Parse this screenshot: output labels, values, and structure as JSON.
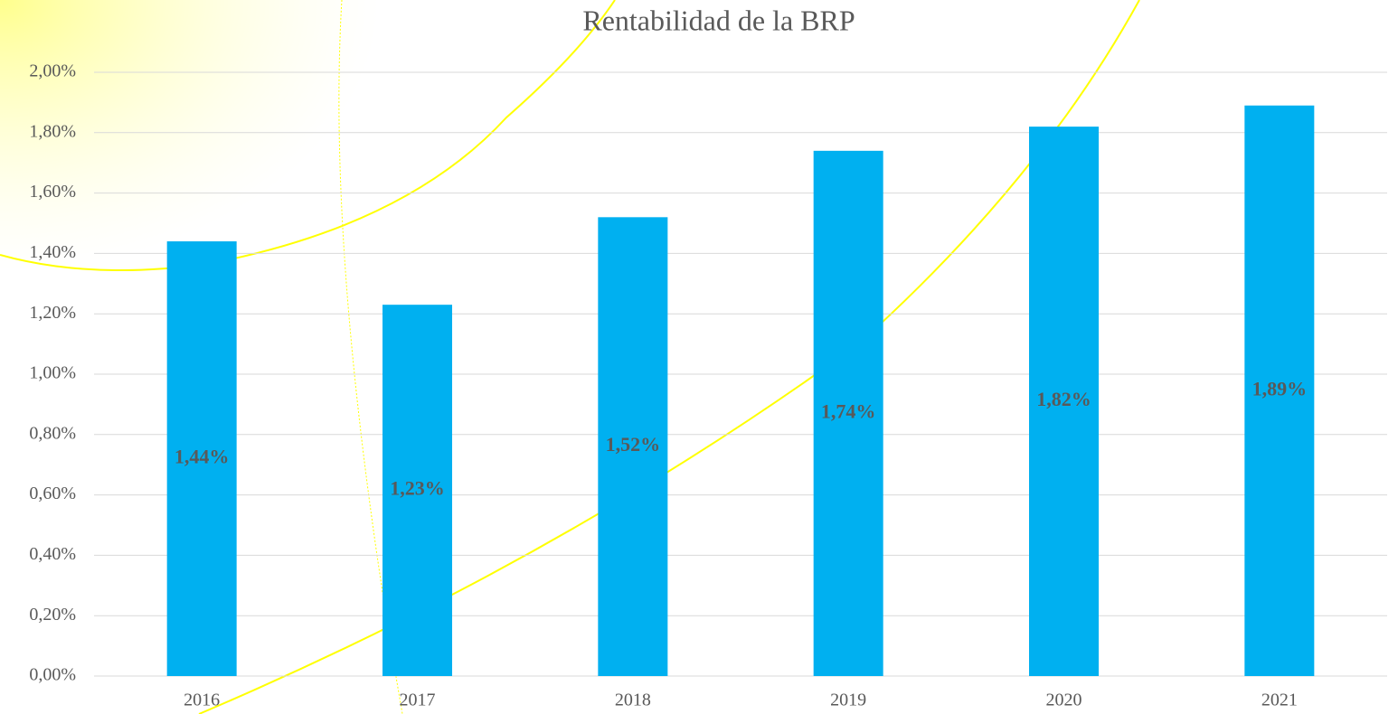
{
  "chart_data": {
    "type": "bar",
    "title": "Rentabilidad de la BRP",
    "categories": [
      "2016",
      "2017",
      "2018",
      "2019",
      "2020",
      "2021"
    ],
    "values": [
      1.44,
      1.23,
      1.52,
      1.74,
      1.82,
      1.89
    ],
    "value_labels": [
      "1,44%",
      "1,23%",
      "1,52%",
      "1,74%",
      "1,82%",
      "1,89%"
    ],
    "color": "#00b0f0",
    "ylim": [
      0,
      2
    ],
    "yticks": [
      {
        "value": 0,
        "label": "0,00%"
      },
      {
        "value": 0.2,
        "label": "0,20%"
      },
      {
        "value": 0.4,
        "label": "0,40%"
      },
      {
        "value": 0.6,
        "label": "0,60%"
      },
      {
        "value": 0.8,
        "label": "0,80%"
      },
      {
        "value": 1,
        "label": "1,00%"
      },
      {
        "value": 1.2,
        "label": "1,20%"
      },
      {
        "value": 1.4,
        "label": "1,40%"
      },
      {
        "value": 1.6,
        "label": "1,60%"
      },
      {
        "value": 1.8,
        "label": "1,80%"
      },
      {
        "value": 2,
        "label": "2,00%"
      }
    ],
    "grid": true
  }
}
